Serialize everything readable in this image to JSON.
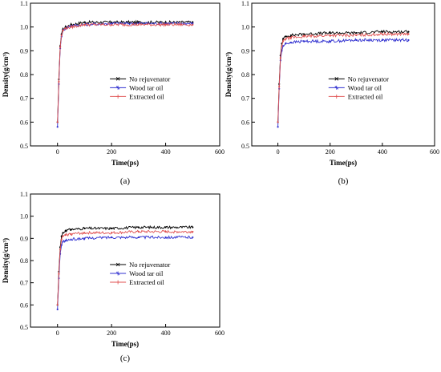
{
  "chart_data": [
    {
      "type": "line",
      "caption": "(a)",
      "xlabel": "Time(ps)",
      "ylabel": "Density(g/cm³)",
      "xlim": [
        -100,
        600
      ],
      "ylim": [
        0.5,
        1.1
      ],
      "xticks": [
        "0",
        "200",
        "400",
        "600"
      ],
      "yticks": [
        "0.5",
        "0.6",
        "0.7",
        "0.8",
        "0.9",
        "1.0",
        "1.1"
      ],
      "legend_position": "lower-right",
      "series": [
        {
          "name": "No rejuvenator",
          "color": "#000000",
          "x": [
            0,
            5,
            10,
            15,
            20,
            30,
            50,
            100,
            200,
            300,
            400,
            500
          ],
          "y": [
            0.6,
            0.78,
            0.92,
            0.97,
            0.99,
            1.0,
            1.01,
            1.02,
            1.02,
            1.02,
            1.02,
            1.02
          ]
        },
        {
          "name": "Wood tar oil",
          "color": "#3030d0",
          "x": [
            0,
            5,
            10,
            15,
            20,
            30,
            50,
            100,
            200,
            300,
            400,
            500
          ],
          "y": [
            0.58,
            0.76,
            0.91,
            0.96,
            0.985,
            0.995,
            1.005,
            1.01,
            1.015,
            1.015,
            1.015,
            1.015
          ]
        },
        {
          "name": "Extracted oil",
          "color": "#e05050",
          "x": [
            0,
            5,
            10,
            15,
            20,
            30,
            50,
            100,
            200,
            300,
            400,
            500
          ],
          "y": [
            0.6,
            0.77,
            0.915,
            0.965,
            0.985,
            0.995,
            1.0,
            1.01,
            1.01,
            1.01,
            1.01,
            1.01
          ]
        }
      ]
    },
    {
      "type": "line",
      "caption": "(b)",
      "xlabel": "Time(ps)",
      "ylabel": "Density(g/cm³)",
      "xlim": [
        -100,
        600
      ],
      "ylim": [
        0.5,
        1.1
      ],
      "xticks": [
        "0",
        "200",
        "400",
        "600"
      ],
      "yticks": [
        "0.5",
        "0.6",
        "0.7",
        "0.8",
        "0.9",
        "1.0",
        "1.1"
      ],
      "legend_position": "lower-right",
      "series": [
        {
          "name": "No rejuvenator",
          "color": "#000000",
          "x": [
            0,
            5,
            10,
            15,
            20,
            30,
            50,
            100,
            200,
            300,
            400,
            500
          ],
          "y": [
            0.6,
            0.76,
            0.88,
            0.93,
            0.95,
            0.96,
            0.965,
            0.97,
            0.975,
            0.975,
            0.98,
            0.98
          ]
        },
        {
          "name": "Wood tar oil",
          "color": "#3030d0",
          "x": [
            0,
            5,
            10,
            15,
            20,
            30,
            50,
            100,
            200,
            300,
            400,
            500
          ],
          "y": [
            0.58,
            0.74,
            0.86,
            0.9,
            0.92,
            0.93,
            0.935,
            0.94,
            0.94,
            0.945,
            0.945,
            0.945
          ]
        },
        {
          "name": "Extracted oil",
          "color": "#e05050",
          "x": [
            0,
            5,
            10,
            15,
            20,
            30,
            50,
            100,
            200,
            300,
            400,
            500
          ],
          "y": [
            0.6,
            0.75,
            0.87,
            0.92,
            0.94,
            0.95,
            0.955,
            0.96,
            0.965,
            0.965,
            0.97,
            0.97
          ]
        }
      ]
    },
    {
      "type": "line",
      "caption": "(c)",
      "xlabel": "Time(ps)",
      "ylabel": "Density(g/cm³)",
      "xlim": [
        -100,
        600
      ],
      "ylim": [
        0.5,
        1.1
      ],
      "xticks": [
        "0",
        "200",
        "400",
        "600"
      ],
      "yticks": [
        "0.5",
        "0.6",
        "0.7",
        "0.8",
        "0.9",
        "1.0",
        "1.1"
      ],
      "legend_position": "lower-right",
      "series": [
        {
          "name": "No rejuvenator",
          "color": "#000000",
          "x": [
            0,
            5,
            10,
            15,
            20,
            30,
            50,
            100,
            200,
            300,
            400,
            500
          ],
          "y": [
            0.6,
            0.75,
            0.86,
            0.91,
            0.925,
            0.935,
            0.94,
            0.945,
            0.945,
            0.95,
            0.95,
            0.95
          ]
        },
        {
          "name": "Wood tar oil",
          "color": "#3030d0",
          "x": [
            0,
            5,
            10,
            15,
            20,
            30,
            50,
            100,
            200,
            300,
            400,
            500
          ],
          "y": [
            0.58,
            0.72,
            0.83,
            0.87,
            0.885,
            0.89,
            0.895,
            0.9,
            0.905,
            0.905,
            0.905,
            0.905
          ]
        },
        {
          "name": "Extracted oil",
          "color": "#e05050",
          "x": [
            0,
            5,
            10,
            15,
            20,
            30,
            50,
            100,
            200,
            300,
            400,
            500
          ],
          "y": [
            0.6,
            0.74,
            0.85,
            0.895,
            0.91,
            0.915,
            0.92,
            0.925,
            0.925,
            0.93,
            0.93,
            0.93
          ]
        }
      ]
    }
  ]
}
